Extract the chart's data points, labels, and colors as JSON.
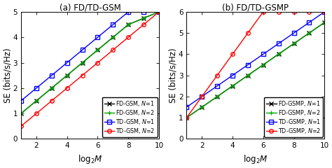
{
  "subplot_a": {
    "title": "(a) FD/TD-GSM",
    "xlabel": "log$_2$$M$",
    "ylabel": "SE (bits/s/Hz)",
    "xlim": [
      1,
      10
    ],
    "ylim": [
      0,
      5
    ],
    "yticks": [
      0,
      1,
      2,
      3,
      4,
      5
    ],
    "xticks": [
      2,
      4,
      6,
      8,
      10
    ],
    "series": [
      {
        "label": "FD-GSM, $N$=1",
        "color": "black",
        "marker": "x",
        "markersize": 4,
        "linewidth": 1.0,
        "x": [
          1,
          2,
          3,
          4,
          5,
          6,
          7,
          8,
          9,
          10
        ],
        "y": [
          1.0,
          1.5,
          2.0,
          2.5,
          3.0,
          3.5,
          4.0,
          4.5,
          4.75,
          5.0
        ]
      },
      {
        "label": "FD-GSM, $N$=2",
        "color": "#00aa00",
        "marker": "+",
        "markersize": 5,
        "linewidth": 1.0,
        "x": [
          1,
          2,
          3,
          4,
          5,
          6,
          7,
          8,
          9,
          10
        ],
        "y": [
          1.0,
          1.5,
          2.0,
          2.5,
          3.0,
          3.5,
          4.0,
          4.5,
          4.75,
          5.0
        ]
      },
      {
        "label": "TD-GSM, $N$=1",
        "color": "blue",
        "marker": "s",
        "markersize": 4,
        "linewidth": 1.0,
        "x": [
          1,
          2,
          3,
          4,
          5,
          6,
          7,
          8,
          9,
          10
        ],
        "y": [
          1.5,
          2.0,
          2.5,
          3.0,
          3.5,
          4.0,
          4.5,
          5.0,
          5.0,
          5.0
        ]
      },
      {
        "label": "TD-GSM, $N$=2",
        "color": "red",
        "marker": "o",
        "markersize": 4,
        "linewidth": 1.0,
        "x": [
          1,
          2,
          3,
          4,
          5,
          6,
          7,
          8,
          9,
          10
        ],
        "y": [
          0.5,
          1.0,
          1.5,
          2.0,
          2.5,
          3.0,
          3.5,
          4.0,
          4.5,
          5.0
        ]
      }
    ],
    "legend_loc": "lower right"
  },
  "subplot_b": {
    "title": "(b) FD/TD-GSMP",
    "xlabel": "log$_2$$M$",
    "ylabel": "SE (bits/s/Hz)",
    "xlim": [
      1,
      10
    ],
    "ylim": [
      0,
      6
    ],
    "yticks": [
      0,
      1,
      2,
      3,
      4,
      5,
      6
    ],
    "xticks": [
      2,
      4,
      6,
      8,
      10
    ],
    "series": [
      {
        "label": "FD-GSMP, $N$=1",
        "color": "black",
        "marker": "x",
        "markersize": 4,
        "linewidth": 1.0,
        "x": [
          1,
          2,
          3,
          4,
          5,
          6,
          7,
          8,
          9,
          10
        ],
        "y": [
          1.0,
          1.5,
          2.0,
          2.5,
          3.0,
          3.5,
          4.0,
          4.5,
          5.0,
          5.5
        ]
      },
      {
        "label": "FD-GSMP, $N$=2",
        "color": "#00aa00",
        "marker": "+",
        "markersize": 5,
        "linewidth": 1.0,
        "x": [
          1,
          2,
          3,
          4,
          5,
          6,
          7,
          8,
          9,
          10
        ],
        "y": [
          1.0,
          1.5,
          2.0,
          2.5,
          3.0,
          3.5,
          4.0,
          4.5,
          5.0,
          5.5
        ]
      },
      {
        "label": "TD-GSMP, $N$=1",
        "color": "blue",
        "marker": "s",
        "markersize": 4,
        "linewidth": 1.0,
        "x": [
          1,
          2,
          3,
          4,
          5,
          6,
          7,
          8,
          9,
          10
        ],
        "y": [
          1.5,
          2.0,
          2.5,
          3.0,
          3.5,
          4.0,
          4.5,
          5.0,
          5.5,
          6.0
        ]
      },
      {
        "label": "TD-GSMP, $N$=2",
        "color": "red",
        "marker": "o",
        "markersize": 4,
        "linewidth": 1.0,
        "x": [
          1,
          2,
          3,
          4,
          5,
          6,
          7,
          8,
          9,
          10
        ],
        "y": [
          1.0,
          2.0,
          3.0,
          4.0,
          5.0,
          6.0,
          6.0,
          6.0,
          6.0,
          6.0
        ]
      }
    ],
    "legend_loc": "lower right"
  },
  "legend_fontsize": 5.8,
  "tick_fontsize": 7.5,
  "label_fontsize": 8.5,
  "title_fontsize": 8.5
}
